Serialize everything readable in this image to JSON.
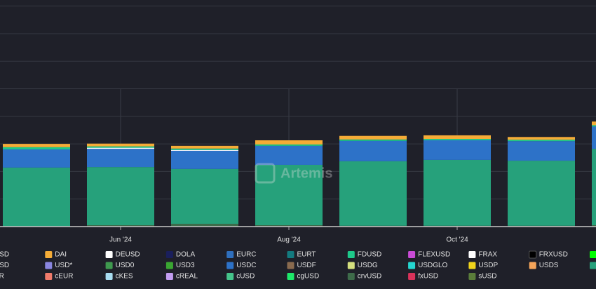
{
  "chart_data": {
    "type": "stacked_bar",
    "watermark": "Artemis",
    "categories": [
      null,
      "Jun '24",
      null,
      "Aug '24",
      null,
      "Oct '24",
      null,
      null
    ],
    "ylim": [
      0,
      8.22
    ],
    "yticks": [
      0,
      1,
      2,
      3,
      4,
      5,
      6,
      7,
      8
    ],
    "grid": true,
    "series": [
      {
        "name": "USD",
        "color": "#8c8c8c",
        "values": [
          0,
          0,
          0,
          0,
          0,
          0,
          0,
          0
        ]
      },
      {
        "name": "DAI",
        "color": "#f5ac37",
        "values": [
          0.12,
          0.1,
          0.1,
          0.15,
          0.13,
          0.13,
          0.1,
          0.13
        ]
      },
      {
        "name": "DEUSD",
        "color": "#ffffff",
        "values": [
          0,
          0.04,
          0.03,
          0,
          0,
          0,
          0,
          0
        ]
      },
      {
        "name": "DOLA",
        "color": "#1a1f5c",
        "values": [
          0,
          0,
          0,
          0,
          0,
          0,
          0,
          0
        ]
      },
      {
        "name": "EURC",
        "color": "#2f6fbd",
        "values": [
          0,
          0,
          0,
          0,
          0,
          0,
          0,
          0
        ]
      },
      {
        "name": "EURT",
        "color": "#137a7f",
        "values": [
          0,
          0,
          0,
          0,
          0,
          0,
          0,
          0
        ]
      },
      {
        "name": "FDUSD",
        "color": "#1ec98a",
        "values": [
          0.08,
          0.05,
          0.05,
          0.05,
          0.05,
          0.05,
          0.05,
          0.05
        ]
      },
      {
        "name": "FLEXUSD",
        "color": "#c94bd6",
        "values": [
          0,
          0,
          0,
          0,
          0,
          0,
          0,
          0
        ]
      },
      {
        "name": "FRAX",
        "color": "#ffffff",
        "values": [
          0,
          0,
          0,
          0,
          0,
          0,
          0,
          0
        ]
      },
      {
        "name": "FRXUSD",
        "color": "#000000",
        "values": [
          0,
          0,
          0,
          0,
          0,
          0,
          0,
          0
        ]
      },
      {
        "name": null,
        "color": "#00ff00",
        "values": [
          0,
          0,
          0,
          0,
          0,
          0,
          0,
          0
        ]
      },
      {
        "name": "USD",
        "color": "#8c8c8c",
        "values": [
          0,
          0,
          0,
          0,
          0,
          0,
          0,
          0
        ]
      },
      {
        "name": "USD*",
        "color": "#8a86e0",
        "values": [
          0,
          0,
          0,
          0,
          0,
          0,
          0,
          0
        ]
      },
      {
        "name": "USD0",
        "color": "#3f9a4f",
        "values": [
          0,
          0,
          0,
          0,
          0,
          0,
          0,
          0
        ]
      },
      {
        "name": "USD3",
        "color": "#3aa632",
        "values": [
          0,
          0,
          0,
          0,
          0,
          0,
          0,
          0
        ]
      },
      {
        "name": "USDC",
        "color": "#2d72c8",
        "values": [
          0.66,
          0.66,
          0.66,
          0.69,
          0.74,
          0.71,
          0.71,
          0.81
        ]
      },
      {
        "name": "USDF",
        "color": "#8a6b4f",
        "values": [
          0,
          0,
          0,
          0,
          0,
          0,
          0,
          0
        ]
      },
      {
        "name": "USDG",
        "color": "#d5e07f",
        "values": [
          0,
          0,
          0,
          0,
          0,
          0,
          0,
          0
        ]
      },
      {
        "name": "USDGLO",
        "color": "#25d6d0",
        "values": [
          0,
          0,
          0,
          0,
          0,
          0,
          0,
          0
        ]
      },
      {
        "name": "USDP",
        "color": "#f0d41c",
        "values": [
          0,
          0,
          0,
          0,
          0,
          0,
          0,
          0
        ]
      },
      {
        "name": "USDS",
        "color": "#f5a55a",
        "values": [
          0,
          0,
          0,
          0,
          0,
          0,
          0,
          0
        ]
      },
      {
        "name": null,
        "color": "#26a17b",
        "values": [
          2.14,
          2.11,
          1.99,
          2.19,
          2.34,
          2.39,
          2.36,
          2.77
        ]
      },
      {
        "name": "SR",
        "color": "#8c8c8c",
        "values": [
          0,
          0,
          0,
          0,
          0,
          0,
          0,
          0
        ]
      },
      {
        "name": "cEUR",
        "color": "#f07b6b",
        "values": [
          0,
          0,
          0,
          0,
          0,
          0,
          0,
          0
        ]
      },
      {
        "name": "cKES",
        "color": "#a8dcf0",
        "values": [
          0,
          0,
          0,
          0,
          0,
          0,
          0,
          0
        ]
      },
      {
        "name": "cREAL",
        "color": "#c29cf0",
        "values": [
          0,
          0,
          0,
          0,
          0,
          0,
          0,
          0
        ]
      },
      {
        "name": "cUSD",
        "color": "#45c48a",
        "values": [
          0,
          0,
          0,
          0,
          0,
          0,
          0,
          0
        ]
      },
      {
        "name": "cgUSD",
        "color": "#1ee86a",
        "values": [
          0,
          0,
          0,
          0,
          0,
          0,
          0,
          0
        ]
      },
      {
        "name": "crvUSD",
        "color": "#3e6b4a",
        "values": [
          0,
          0.05,
          0.1,
          0.05,
          0.03,
          0.03,
          0.03,
          0.05
        ]
      },
      {
        "name": "fxUSD",
        "color": "#d9325a",
        "values": [
          0,
          0,
          0,
          0,
          0,
          0,
          0,
          0
        ]
      },
      {
        "name": "sUSD",
        "color": "#5a7d3a",
        "values": [
          0,
          0,
          0,
          0,
          0,
          0,
          0,
          0
        ]
      }
    ]
  }
}
